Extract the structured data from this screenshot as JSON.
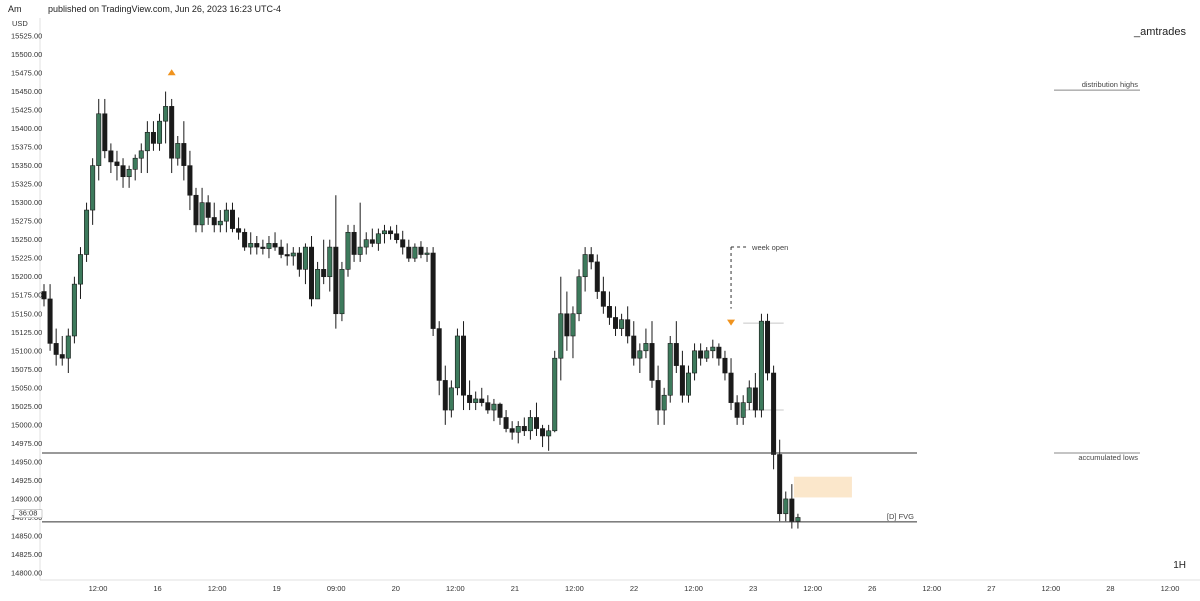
{
  "header": {
    "user": "Am",
    "published": "published on TradingView.com, Jun 26, 2023 16:23 UTC-4"
  },
  "watermark": "_amtrades",
  "timeframe": "1H",
  "chart_data": {
    "type": "candlestick",
    "currency_label": "USD",
    "y_ticks": [
      "15525.00",
      "15500.00",
      "15475.00",
      "15450.00",
      "15425.00",
      "15400.00",
      "15375.00",
      "15350.00",
      "15325.00",
      "15300.00",
      "15275.00",
      "15250.00",
      "15225.00",
      "15200.00",
      "15175.00",
      "15150.00",
      "15125.00",
      "15100.00",
      "15075.00",
      "15050.00",
      "15025.00",
      "15000.00",
      "14975.00",
      "14950.00",
      "14925.00",
      "14900.00",
      "14875.00",
      "14850.00",
      "14825.00",
      "14800.00"
    ],
    "ylim": [
      14800,
      15525
    ],
    "x_ticks": [
      "12:00",
      "16",
      "12:00",
      "19",
      "09:00",
      "20",
      "12:00",
      "21",
      "12:00",
      "22",
      "12:00",
      "23",
      "12:00",
      "26",
      "12:00",
      "27",
      "12:00",
      "28",
      "12:00"
    ],
    "countdown_label": "36:08",
    "colors": {
      "up": "#3d7a5c",
      "down": "#1a1a1a",
      "marker": "#f0931e",
      "fvg": "#fbe7cb"
    },
    "candles": [
      [
        15180,
        15190,
        15160,
        15170
      ],
      [
        15170,
        15190,
        15100,
        15110
      ],
      [
        15110,
        15130,
        15080,
        15095
      ],
      [
        15095,
        15120,
        15080,
        15090
      ],
      [
        15090,
        15130,
        15070,
        15120
      ],
      [
        15120,
        15200,
        15110,
        15190
      ],
      [
        15190,
        15240,
        15170,
        15230
      ],
      [
        15230,
        15300,
        15220,
        15290
      ],
      [
        15290,
        15360,
        15270,
        15350
      ],
      [
        15350,
        15440,
        15330,
        15420
      ],
      [
        15420,
        15440,
        15360,
        15370
      ],
      [
        15370,
        15380,
        15340,
        15355
      ],
      [
        15355,
        15370,
        15330,
        15350
      ],
      [
        15350,
        15360,
        15320,
        15335
      ],
      [
        15335,
        15350,
        15320,
        15345
      ],
      [
        15345,
        15365,
        15330,
        15360
      ],
      [
        15360,
        15380,
        15340,
        15370
      ],
      [
        15370,
        15410,
        15340,
        15395
      ],
      [
        15395,
        15410,
        15370,
        15380
      ],
      [
        15380,
        15420,
        15370,
        15410
      ],
      [
        15410,
        15450,
        15380,
        15430
      ],
      [
        15430,
        15440,
        15340,
        15360
      ],
      [
        15360,
        15390,
        15350,
        15380
      ],
      [
        15380,
        15410,
        15330,
        15350
      ],
      [
        15350,
        15370,
        15290,
        15310
      ],
      [
        15310,
        15320,
        15260,
        15270
      ],
      [
        15270,
        15320,
        15260,
        15300
      ],
      [
        15300,
        15310,
        15270,
        15280
      ],
      [
        15280,
        15300,
        15260,
        15270
      ],
      [
        15270,
        15290,
        15260,
        15275
      ],
      [
        15275,
        15300,
        15260,
        15290
      ],
      [
        15290,
        15300,
        15260,
        15265
      ],
      [
        15265,
        15280,
        15250,
        15260
      ],
      [
        15260,
        15265,
        15235,
        15240
      ],
      [
        15240,
        15260,
        15230,
        15245
      ],
      [
        15245,
        15255,
        15230,
        15240
      ],
      [
        15240,
        15250,
        15230,
        15238
      ],
      [
        15238,
        15255,
        15225,
        15245
      ],
      [
        15245,
        15260,
        15235,
        15240
      ],
      [
        15240,
        15250,
        15225,
        15230
      ],
      [
        15230,
        15245,
        15215,
        15228
      ],
      [
        15228,
        15240,
        15215,
        15232
      ],
      [
        15232,
        15240,
        15200,
        15210
      ],
      [
        15210,
        15245,
        15190,
        15240
      ],
      [
        15240,
        15255,
        15160,
        15170
      ],
      [
        15170,
        15220,
        15170,
        15210
      ],
      [
        15210,
        15250,
        15190,
        15200
      ],
      [
        15200,
        15250,
        15180,
        15240
      ],
      [
        15240,
        15310,
        15130,
        15150
      ],
      [
        15150,
        15220,
        15140,
        15210
      ],
      [
        15210,
        15270,
        15200,
        15260
      ],
      [
        15260,
        15270,
        15220,
        15230
      ],
      [
        15230,
        15300,
        15220,
        15240
      ],
      [
        15240,
        15260,
        15230,
        15250
      ],
      [
        15250,
        15265,
        15240,
        15245
      ],
      [
        15245,
        15265,
        15235,
        15258
      ],
      [
        15258,
        15270,
        15245,
        15262
      ],
      [
        15262,
        15268,
        15250,
        15258
      ],
      [
        15258,
        15270,
        15245,
        15250
      ],
      [
        15250,
        15262,
        15230,
        15240
      ],
      [
        15240,
        15250,
        15220,
        15225
      ],
      [
        15225,
        15245,
        15220,
        15240
      ],
      [
        15240,
        15248,
        15225,
        15230
      ],
      [
        15230,
        15240,
        15220,
        15232
      ],
      [
        15232,
        15240,
        15120,
        15130
      ],
      [
        15130,
        15140,
        15040,
        15060
      ],
      [
        15060,
        15080,
        15000,
        15020
      ],
      [
        15020,
        15060,
        15010,
        15050
      ],
      [
        15050,
        15130,
        15040,
        15120
      ],
      [
        15120,
        15140,
        15020,
        15040
      ],
      [
        15040,
        15060,
        15020,
        15030
      ],
      [
        15030,
        15045,
        15020,
        15035
      ],
      [
        15035,
        15050,
        15025,
        15030
      ],
      [
        15030,
        15040,
        15015,
        15020
      ],
      [
        15020,
        15035,
        15005,
        15028
      ],
      [
        15028,
        15030,
        15000,
        15010
      ],
      [
        15010,
        15020,
        14990,
        14995
      ],
      [
        14995,
        15005,
        14980,
        14990
      ],
      [
        14990,
        15005,
        14975,
        14998
      ],
      [
        14998,
        15010,
        14985,
        14992
      ],
      [
        14992,
        15020,
        14980,
        15010
      ],
      [
        15010,
        15030,
        14985,
        14995
      ],
      [
        14995,
        15000,
        14970,
        14985
      ],
      [
        14985,
        15000,
        14965,
        14992
      ],
      [
        14992,
        15100,
        14990,
        15090
      ],
      [
        15090,
        15200,
        15060,
        15150
      ],
      [
        15150,
        15180,
        15100,
        15120
      ],
      [
        15120,
        15160,
        15090,
        15150
      ],
      [
        15150,
        15210,
        15140,
        15200
      ],
      [
        15200,
        15240,
        15180,
        15230
      ],
      [
        15230,
        15240,
        15210,
        15220
      ],
      [
        15220,
        15230,
        15170,
        15180
      ],
      [
        15180,
        15200,
        15150,
        15160
      ],
      [
        15160,
        15180,
        15135,
        15145
      ],
      [
        15145,
        15160,
        15120,
        15130
      ],
      [
        15130,
        15150,
        15120,
        15142
      ],
      [
        15142,
        15160,
        15110,
        15120
      ],
      [
        15120,
        15140,
        15080,
        15090
      ],
      [
        15090,
        15110,
        15070,
        15100
      ],
      [
        15100,
        15130,
        15090,
        15110
      ],
      [
        15110,
        15140,
        15050,
        15060
      ],
      [
        15060,
        15080,
        15000,
        15020
      ],
      [
        15020,
        15050,
        15000,
        15040
      ],
      [
        15040,
        15120,
        15030,
        15110
      ],
      [
        15110,
        15140,
        15070,
        15080
      ],
      [
        15080,
        15100,
        15030,
        15040
      ],
      [
        15040,
        15080,
        15030,
        15070
      ],
      [
        15070,
        15110,
        15060,
        15100
      ],
      [
        15100,
        15110,
        15080,
        15090
      ],
      [
        15090,
        15105,
        15085,
        15100
      ],
      [
        15100,
        15115,
        15090,
        15105
      ],
      [
        15105,
        15110,
        15080,
        15090
      ],
      [
        15090,
        15100,
        15060,
        15070
      ],
      [
        15070,
        15090,
        15020,
        15030
      ],
      [
        15030,
        15040,
        15000,
        15010
      ],
      [
        15010,
        15040,
        15000,
        15030
      ],
      [
        15030,
        15060,
        15020,
        15050
      ],
      [
        15050,
        15070,
        15010,
        15020
      ],
      [
        15020,
        15150,
        15010,
        15140
      ],
      [
        15140,
        15150,
        15060,
        15070
      ],
      [
        15070,
        15080,
        14940,
        14960
      ],
      [
        14960,
        14980,
        14870,
        14880
      ],
      [
        14880,
        14910,
        14870,
        14900
      ],
      [
        14900,
        14920,
        14860,
        14870
      ],
      [
        14870,
        14880,
        14860,
        14875
      ]
    ],
    "overlays": {
      "distribution_highs": {
        "price": 15452,
        "label": "distribution highs"
      },
      "accumulated_lows": {
        "price": 14962,
        "label": "accumulated lows"
      },
      "fvg": {
        "price": 14869,
        "label": "[D] FVG",
        "zone_top": 14930,
        "zone_bottom": 14902
      },
      "week_open": {
        "price": 15138,
        "label": "week open"
      },
      "ref_level": {
        "price": 15020
      },
      "markers": [
        {
          "candle": 21,
          "price": 15476,
          "dir": "up"
        },
        {
          "candle": 113,
          "price": 15138,
          "dir": "down"
        }
      ]
    }
  }
}
